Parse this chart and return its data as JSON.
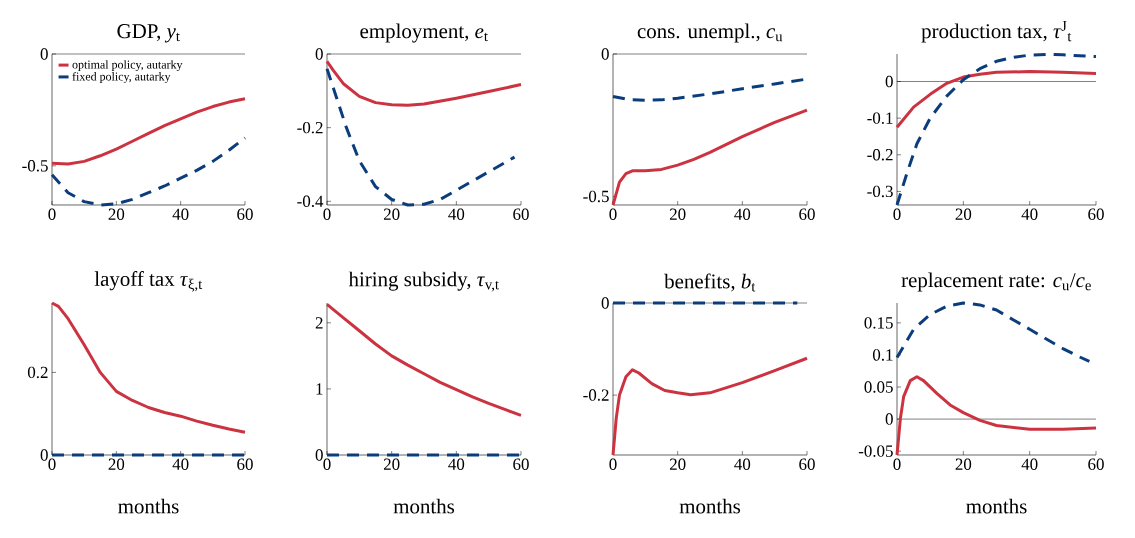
{
  "chart_data": [
    {
      "type": "line",
      "title": "GDP, *y*$_{t}$",
      "xlim": [
        0,
        60
      ],
      "xticks": [
        0,
        20,
        40,
        60
      ],
      "ylim": [
        -0.675,
        0
      ],
      "yticks": [
        -0.5,
        0
      ],
      "legend": "top left",
      "ref_lines": [
        {
          "axis": "y",
          "value": 0,
          "color": "#000000"
        }
      ],
      "series": [
        {
          "name": "optimal policy, autarky",
          "color": "#cc3340",
          "line_style": "solid",
          "x": [
            0,
            5,
            10,
            15,
            20,
            25,
            30,
            35,
            40,
            45,
            50,
            55,
            60
          ],
          "values": [
            -0.488,
            -0.492,
            -0.48,
            -0.455,
            -0.425,
            -0.39,
            -0.355,
            -0.32,
            -0.29,
            -0.26,
            -0.235,
            -0.215,
            -0.2
          ]
        },
        {
          "name": "fixed policy, autarky",
          "color": "#0b3d7d",
          "line_style": "dashed",
          "x": [
            0,
            5,
            10,
            15,
            20,
            25,
            30,
            35,
            40,
            45,
            50,
            55,
            60
          ],
          "values": [
            -0.54,
            -0.62,
            -0.66,
            -0.675,
            -0.67,
            -0.65,
            -0.62,
            -0.59,
            -0.555,
            -0.52,
            -0.48,
            -0.43,
            -0.375
          ]
        }
      ]
    },
    {
      "type": "line",
      "title": "employment, *e*$_{t}$",
      "xlim": [
        0,
        60
      ],
      "xticks": [
        0,
        20,
        40,
        60
      ],
      "ylim": [
        -0.41,
        0
      ],
      "yticks": [
        -0.4,
        -0.2,
        0
      ],
      "ref_lines": [
        {
          "axis": "y",
          "value": 0,
          "color": "#000000"
        }
      ],
      "series": [
        {
          "color": "#cc3340",
          "line_style": "solid",
          "x": [
            0,
            2,
            5,
            10,
            15,
            20,
            25,
            30,
            40,
            50,
            60
          ],
          "values": [
            -0.02,
            -0.045,
            -0.08,
            -0.115,
            -0.132,
            -0.138,
            -0.139,
            -0.136,
            -0.12,
            -0.102,
            -0.083
          ]
        },
        {
          "color": "#0b3d7d",
          "line_style": "dashed",
          "x": [
            0,
            3,
            6,
            10,
            15,
            20,
            25,
            30,
            35,
            40,
            45,
            50,
            55,
            58
          ],
          "values": [
            -0.04,
            -0.12,
            -0.2,
            -0.29,
            -0.36,
            -0.395,
            -0.41,
            -0.408,
            -0.395,
            -0.37,
            -0.345,
            -0.32,
            -0.295,
            -0.28
          ]
        }
      ]
    },
    {
      "type": "line",
      "title": "cons. unempl., *c*$_{u}$",
      "xlim": [
        0,
        60
      ],
      "xticks": [
        0,
        20,
        40,
        60
      ],
      "ylim": [
        -0.53,
        0
      ],
      "yticks": [
        -0.5,
        0
      ],
      "ref_lines": [
        {
          "axis": "y",
          "value": 0,
          "color": "#000000"
        }
      ],
      "series": [
        {
          "color": "#cc3340",
          "line_style": "solid",
          "x": [
            0,
            1,
            2,
            4,
            6,
            10,
            15,
            20,
            25,
            30,
            40,
            50,
            60
          ],
          "values": [
            -0.53,
            -0.49,
            -0.45,
            -0.42,
            -0.41,
            -0.41,
            -0.405,
            -0.39,
            -0.37,
            -0.345,
            -0.29,
            -0.24,
            -0.197
          ]
        },
        {
          "color": "#0b3d7d",
          "line_style": "dashed",
          "x": [
            0,
            5,
            10,
            15,
            20,
            30,
            40,
            50,
            60
          ],
          "values": [
            -0.149,
            -0.16,
            -0.162,
            -0.161,
            -0.155,
            -0.14,
            -0.122,
            -0.105,
            -0.088
          ]
        }
      ]
    },
    {
      "type": "line",
      "title": "production tax, *τ*$^{J}$$_{t}$",
      "xlim": [
        0,
        60
      ],
      "xticks": [
        0,
        20,
        40,
        60
      ],
      "ylim": [
        -0.337,
        0.075
      ],
      "yticks": [
        -0.3,
        -0.2,
        -0.1,
        0
      ],
      "ref_lines": [
        {
          "axis": "y",
          "value": 0,
          "color": "#000000"
        }
      ],
      "series": [
        {
          "color": "#cc3340",
          "line_style": "solid",
          "x": [
            0,
            5,
            10,
            15,
            20,
            25,
            30,
            40,
            50,
            60
          ],
          "values": [
            -0.125,
            -0.07,
            -0.035,
            -0.005,
            0.012,
            0.02,
            0.025,
            0.027,
            0.025,
            0.022
          ]
        },
        {
          "color": "#0b3d7d",
          "line_style": "dashed",
          "x": [
            0,
            3,
            6,
            10,
            15,
            20,
            25,
            30,
            35,
            40,
            45,
            50,
            55,
            60
          ],
          "values": [
            -0.337,
            -0.25,
            -0.17,
            -0.1,
            -0.04,
            0.005,
            0.035,
            0.055,
            0.066,
            0.072,
            0.074,
            0.073,
            0.07,
            0.068
          ]
        }
      ]
    },
    {
      "type": "line",
      "title": "layoff tax *τ*$_{ξ,t}$",
      "xlabel": "months",
      "xlim": [
        0,
        60
      ],
      "xticks": [
        0,
        20,
        40,
        60
      ],
      "ylim": [
        0,
        0.368
      ],
      "yticks": [
        0,
        0.2
      ],
      "series": [
        {
          "color": "#cc3340",
          "line_style": "solid",
          "x": [
            0,
            2,
            5,
            10,
            15,
            20,
            25,
            30,
            35,
            40,
            45,
            50,
            55,
            60
          ],
          "values": [
            0.368,
            0.36,
            0.33,
            0.267,
            0.2,
            0.154,
            0.132,
            0.115,
            0.103,
            0.094,
            0.082,
            0.072,
            0.063,
            0.055
          ]
        },
        {
          "color": "#0b3d7d",
          "line_style": "dashed",
          "x": [
            0,
            60
          ],
          "values": [
            0,
            0
          ]
        }
      ]
    },
    {
      "type": "line",
      "title": "hiring subsidy, *τ*$_{v,t}$",
      "xlabel": "months",
      "xlim": [
        0,
        60
      ],
      "xticks": [
        0,
        20,
        40,
        60
      ],
      "ylim": [
        0,
        2.3
      ],
      "yticks": [
        0,
        1,
        2
      ],
      "series": [
        {
          "color": "#cc3340",
          "line_style": "solid",
          "x": [
            0,
            5,
            10,
            15,
            20,
            25,
            30,
            35,
            40,
            45,
            50,
            55,
            60
          ],
          "values": [
            2.28,
            2.08,
            1.88,
            1.68,
            1.5,
            1.36,
            1.23,
            1.1,
            0.99,
            0.88,
            0.78,
            0.69,
            0.6
          ]
        },
        {
          "color": "#0b3d7d",
          "line_style": "dashed",
          "x": [
            0,
            60
          ],
          "values": [
            0,
            0
          ]
        }
      ]
    },
    {
      "type": "line",
      "title": "benefits, *b*$_{t}$",
      "xlabel": "months",
      "xlim": [
        0,
        60
      ],
      "xticks": [
        0,
        20,
        40,
        60
      ],
      "ylim": [
        -0.33,
        0
      ],
      "yticks": [
        -0.2,
        0
      ],
      "ref_lines": [
        {
          "axis": "y",
          "value": 0,
          "color": "#000000"
        }
      ],
      "series": [
        {
          "color": "#cc3340",
          "line_style": "solid",
          "x": [
            0,
            1,
            2,
            4,
            6,
            8,
            12,
            16,
            20,
            24,
            30,
            40,
            50,
            60
          ],
          "values": [
            -0.33,
            -0.25,
            -0.2,
            -0.16,
            -0.145,
            -0.152,
            -0.175,
            -0.19,
            -0.195,
            -0.199,
            -0.195,
            -0.173,
            -0.147,
            -0.12
          ]
        },
        {
          "color": "#0b3d7d",
          "line_style": "dashed",
          "x": [
            0,
            57
          ],
          "values": [
            0,
            0
          ]
        }
      ]
    },
    {
      "type": "line",
      "title": "replacement rate: *c*$_{u}$/*c*$_{e}$",
      "xlabel": "months",
      "xlim": [
        0,
        60
      ],
      "xticks": [
        0,
        20,
        40,
        60
      ],
      "ylim": [
        -0.056,
        0.181
      ],
      "yticks": [
        -0.05,
        0,
        0.05,
        0.1,
        0.15
      ],
      "ref_lines": [
        {
          "axis": "y",
          "value": 0,
          "color": "#000000"
        }
      ],
      "series": [
        {
          "color": "#cc3340",
          "line_style": "solid",
          "x": [
            0,
            1,
            2,
            4,
            6,
            8,
            12,
            16,
            20,
            25,
            30,
            40,
            50,
            60
          ],
          "values": [
            -0.056,
            0.0,
            0.035,
            0.06,
            0.066,
            0.06,
            0.04,
            0.022,
            0.01,
            -0.002,
            -0.01,
            -0.016,
            -0.016,
            -0.014
          ]
        },
        {
          "color": "#0b3d7d",
          "line_style": "dashed",
          "x": [
            0,
            5,
            10,
            15,
            20,
            25,
            30,
            35,
            40,
            45,
            50,
            55,
            58
          ],
          "values": [
            0.096,
            0.14,
            0.163,
            0.176,
            0.181,
            0.178,
            0.17,
            0.155,
            0.14,
            0.125,
            0.11,
            0.097,
            0.09
          ]
        }
      ]
    }
  ]
}
